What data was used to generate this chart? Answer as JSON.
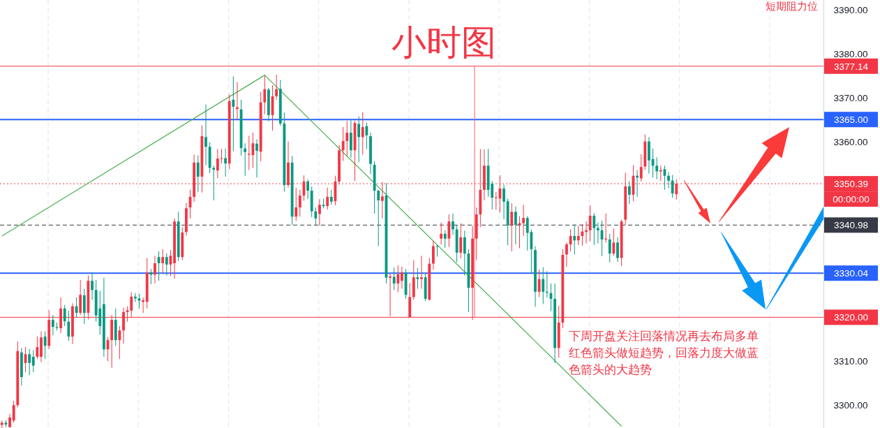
{
  "chart_data": {
    "type": "candlestick",
    "title": "小时图",
    "colors": [
      "#f23645",
      "#089981",
      "#f23645",
      "#f23645",
      "#f23645",
      "#089981",
      "#f23645",
      "#089981",
      "#089981",
      "#f23645",
      "#f23645",
      "#089981",
      "#f23645",
      "#089981",
      "#089981",
      "#f23645",
      "#089981",
      "#089981",
      "#f23645",
      "#089981",
      "#f23645",
      "#089981",
      "#f23645",
      "#089981",
      "#089981",
      "#089981",
      "#089981",
      "#f23645",
      "#f23645",
      "#089981",
      "#f23645",
      "#f23645",
      "#f23645",
      "#f23645",
      "#089981",
      "#089981",
      "#f23645",
      "#f23645",
      "#089981",
      "#f23645",
      "#089981",
      "#f23645",
      "#089981",
      "#f23645",
      "#f23645",
      "#089981",
      "#f23645",
      "#f23645",
      "#f23645",
      "#f23645",
      "#089981",
      "#f23645",
      "#089981",
      "#089981",
      "#089981",
      "#f23645",
      "#f23645",
      "#089981",
      "#f23645",
      "#089981",
      "#f23645",
      "#089981",
      "#089981",
      "#f23645",
      "#f23645",
      "#089981",
      "#f23645",
      "#f23645",
      "#089981",
      "#f23645",
      "#f23645",
      "#089981",
      "#089981",
      "#f23645",
      "#089981",
      "#f23645",
      "#f23645",
      "#f23645",
      "#089981",
      "#089981",
      "#089981",
      "#f23645",
      "#089981",
      "#f23645",
      "#089981",
      "#f23645",
      "#f23645",
      "#f23645",
      "#f23645",
      "#089981",
      "#f23645",
      "#089981",
      "#f23645",
      "#089981",
      "#089981",
      "#089981",
      "#089981",
      "#f23645",
      "#089981",
      "#f23645",
      "#089981",
      "#f23645",
      "#f23645",
      "#089981",
      "#f23645",
      "#f23645",
      "#089981",
      "#f23645",
      "#089981",
      "#f23645",
      "#f23645",
      "#089981",
      "#f23645",
      "#089981",
      "#f23645",
      "#089981",
      "#089981",
      "#f23645",
      "#089981",
      "#089981",
      "#f23645",
      "#f23645",
      "#f23645",
      "#f23645",
      "#089981",
      "#089981",
      "#f23645",
      "#f23645",
      "#089981",
      "#089981",
      "#f23645",
      "#089981",
      "#f23645",
      "#f23645",
      "#089981",
      "#089981",
      "#089981",
      "#f23645",
      "#089981",
      "#089981",
      "#089981",
      "#089981",
      "#f23645",
      "#f23645",
      "#f23645",
      "#f23645",
      "#089981",
      "#f23645",
      "#f23645",
      "#f23645",
      "#f23645",
      "#089981",
      "#089981",
      "#089981",
      "#f23645",
      "#089981",
      "#f23645",
      "#089981",
      "#f23645",
      "#f23645",
      "#089981",
      "#f23645",
      "#089981",
      "#f23645",
      "#f23645",
      "#089981",
      "#089981",
      "#089981",
      "#f23645",
      "#089981",
      "#089981",
      "#089981",
      "#f23645",
      null,
      null,
      null,
      null,
      null,
      null,
      null,
      null,
      null,
      null,
      null,
      null,
      null,
      null,
      null,
      null,
      null,
      null,
      null,
      null,
      null,
      null,
      null,
      null,
      null,
      null,
      null,
      null,
      null,
      null,
      null,
      null,
      null,
      null,
      null,
      null,
      null
    ],
    "categories": [
      null,
      null,
      null,
      null,
      null,
      null,
      null,
      null,
      null,
      null,
      null,
      null,
      null,
      null,
      null,
      null,
      null,
      null,
      null,
      null,
      null,
      null,
      null,
      null,
      null,
      null,
      null,
      null,
      null,
      null,
      null,
      null,
      null,
      null,
      null,
      null,
      null,
      null,
      null,
      null,
      null,
      null,
      null,
      null,
      null,
      null,
      null,
      null,
      null,
      null,
      null,
      null,
      null,
      null,
      null,
      null,
      null,
      null,
      null,
      null,
      null,
      null,
      null,
      null,
      null,
      null,
      null,
      null,
      null,
      null,
      null,
      null,
      null,
      null,
      null,
      null,
      null,
      null,
      null,
      null,
      null,
      null,
      null,
      null,
      null,
      null,
      null,
      null,
      null,
      null,
      null,
      null,
      null,
      null,
      null,
      null,
      null,
      null,
      null,
      null,
      null,
      null,
      null,
      null,
      null,
      null,
      null,
      null,
      null,
      null,
      null,
      null,
      null,
      null,
      null,
      null,
      null,
      null,
      null,
      null,
      null,
      null,
      null,
      null,
      null,
      null,
      null,
      null,
      null,
      null,
      null,
      null,
      null,
      null,
      null,
      null,
      null,
      null,
      null,
      null,
      null,
      null,
      null,
      null,
      null,
      null,
      null,
      null,
      null,
      null,
      null,
      null,
      null,
      null,
      null,
      null,
      null,
      null,
      null,
      null,
      null,
      null,
      null,
      null,
      null,
      null,
      null,
      null,
      null,
      null,
      null,
      null,
      null,
      null,
      null,
      null,
      null,
      null,
      null,
      null,
      null,
      null,
      null,
      null,
      null,
      null,
      null,
      null,
      null,
      null,
      null,
      null,
      null,
      null,
      null,
      null,
      null,
      null,
      null,
      null,
      null,
      null,
      null,
      null,
      null,
      null,
      null,
      null,
      null,
      null
    ],
    "ohlc": [
      [
        3295.5,
        3296.5,
        3294.8,
        3296
      ],
      [
        3296,
        3296.6,
        3295,
        3295.6
      ],
      [
        3295,
        3298,
        3294.9,
        3297.2
      ],
      [
        3296.5,
        3301,
        3296,
        3300
      ],
      [
        3300,
        3314.5,
        3299.5,
        3312.3
      ],
      [
        3312,
        3313,
        3304.5,
        3306.4
      ],
      [
        3309.6,
        3313.2,
        3307.5,
        3311.6
      ],
      [
        3311.6,
        3312.8,
        3306.8,
        3309.6
      ],
      [
        3311,
        3312.5,
        3307.5,
        3309
      ],
      [
        3311,
        3315.6,
        3310.5,
        3313.2
      ],
      [
        3311,
        3316.8,
        3309.8,
        3315.4
      ],
      [
        3315.6,
        3316.8,
        3310.5,
        3313.5
      ],
      [
        3313.5,
        3321.6,
        3312.8,
        3319.4
      ],
      [
        3319.4,
        3320.5,
        3315.9,
        3317.8
      ],
      [
        3317.8,
        3318.8,
        3317,
        3317.6
      ],
      [
        3317.5,
        3324.5,
        3316.4,
        3322
      ],
      [
        3322,
        3322.8,
        3318,
        3319.1
      ],
      [
        3319,
        3321.5,
        3314.6,
        3315.6
      ],
      [
        3315.6,
        3323.2,
        3313.9,
        3322.5
      ],
      [
        3322.5,
        3324.5,
        3320,
        3321
      ],
      [
        3321,
        3328.5,
        3320.5,
        3325.1
      ],
      [
        3325,
        3326.5,
        3318.5,
        3321
      ],
      [
        3321,
        3329.5,
        3319.5,
        3328.3
      ],
      [
        3328.3,
        3330.2,
        3324,
        3326.2
      ],
      [
        3326.2,
        3328.5,
        3319,
        3320.4
      ],
      [
        3322,
        3326,
        3316,
        3318
      ],
      [
        3323,
        3329,
        3311,
        3312.7
      ],
      [
        3312.7,
        3315.5,
        3310,
        3314.8
      ],
      [
        3314.8,
        3320.5,
        3308.5,
        3319.4
      ],
      [
        3319.4,
        3322,
        3313.5,
        3314.8
      ],
      [
        3314.8,
        3318,
        3310.5,
        3317
      ],
      [
        3317,
        3322.2,
        3314,
        3321.2
      ],
      [
        3321.2,
        3322.5,
        3319,
        3321.6
      ],
      [
        3321.5,
        3325.7,
        3320,
        3324.7
      ],
      [
        3324.7,
        3325.5,
        3323.5,
        3324.3
      ],
      [
        3324.3,
        3325.3,
        3322,
        3323.8
      ],
      [
        3323.5,
        3324.5,
        3321,
        3323.9
      ],
      [
        3323.5,
        3333.5,
        3322,
        3330.2
      ],
      [
        3330.2,
        3331,
        3327.5,
        3329.7
      ],
      [
        3329.7,
        3334,
        3327.7,
        3332.3
      ],
      [
        3333.7,
        3335,
        3328.3,
        3332.3
      ],
      [
        3332.3,
        3335.5,
        3330,
        3333.7
      ],
      [
        3333.7,
        3334.5,
        3329.5,
        3332
      ],
      [
        3332,
        3335.3,
        3329.4,
        3334
      ],
      [
        3332.3,
        3342.5,
        3328.8,
        3341.8
      ],
      [
        3341.8,
        3344,
        3332.8,
        3333.7
      ],
      [
        3333.7,
        3340.5,
        3333,
        3339.3
      ],
      [
        3339.4,
        3346,
        3338.6,
        3344.8
      ],
      [
        3345,
        3349,
        3342.5,
        3347.4
      ],
      [
        3347.4,
        3357,
        3346.3,
        3355.2
      ],
      [
        3355.2,
        3356.8,
        3348.5,
        3352
      ],
      [
        3352,
        3363.7,
        3348.4,
        3361.2
      ],
      [
        3361,
        3368.4,
        3354.6,
        3358.8
      ],
      [
        3358.8,
        3359.8,
        3352.8,
        3354
      ],
      [
        3354,
        3354.5,
        3346.6,
        3353.6
      ],
      [
        3353.4,
        3358.3,
        3351.6,
        3356.1
      ],
      [
        3356.1,
        3358.3,
        3355,
        3356.2
      ],
      [
        3356.2,
        3358.4,
        3352,
        3355
      ],
      [
        3355,
        3370.7,
        3353.7,
        3369.2
      ],
      [
        3369.5,
        3374.8,
        3357.8,
        3367.9
      ],
      [
        3367.4,
        3373.5,
        3365,
        3367.8
      ],
      [
        3367.3,
        3369.5,
        3356.8,
        3358.5
      ],
      [
        3358.4,
        3359.6,
        3352.2,
        3357.6
      ],
      [
        3357,
        3361.3,
        3353.5,
        3357.2
      ],
      [
        3356.9,
        3362,
        3354,
        3359.6
      ],
      [
        3359.5,
        3360.5,
        3351.8,
        3357.9
      ],
      [
        3357.7,
        3371.3,
        3355.5,
        3368.9
      ],
      [
        3368.9,
        3375.1,
        3366.2,
        3371.9
      ],
      [
        3371.8,
        3372.2,
        3364.6,
        3366
      ],
      [
        3366,
        3372.8,
        3362.5,
        3370.3
      ],
      [
        3370.3,
        3375.2,
        3369.5,
        3371.9
      ],
      [
        3372,
        3374,
        3363.6,
        3364.1
      ],
      [
        3364.1,
        3366.6,
        3348.6,
        3350.1
      ],
      [
        3350.1,
        3360,
        3349.5,
        3355.2
      ],
      [
        3355.2,
        3356.7,
        3341,
        3342.9
      ],
      [
        3342.9,
        3349.5,
        3341.9,
        3345
      ],
      [
        3345,
        3349,
        3342.9,
        3347.7
      ],
      [
        3347.7,
        3352.3,
        3346.5,
        3350.9
      ],
      [
        3350.9,
        3351.4,
        3346.9,
        3348.8
      ],
      [
        3348.8,
        3349.8,
        3342.8,
        3344.1
      ],
      [
        3344.1,
        3345,
        3340.9,
        3342.5
      ],
      [
        3343.5,
        3346.9,
        3340.9,
        3345.6
      ],
      [
        3345.6,
        3347,
        3344.8,
        3345.3
      ],
      [
        3345.3,
        3349.5,
        3344.5,
        3347.4
      ],
      [
        3347.4,
        3349,
        3345.6,
        3346.3
      ],
      [
        3346.4,
        3352.2,
        3345.5,
        3350.9
      ],
      [
        3350.9,
        3359.2,
        3350.2,
        3358
      ],
      [
        3358,
        3363.3,
        3355.6,
        3360.1
      ],
      [
        3360.1,
        3364.7,
        3356.8,
        3362
      ],
      [
        3362,
        3364.8,
        3356.3,
        3358
      ],
      [
        3358,
        3364.7,
        3351,
        3364.2
      ],
      [
        3364,
        3365.7,
        3355.3,
        3361
      ],
      [
        3361,
        3366.7,
        3357,
        3363.3
      ],
      [
        3363.5,
        3364.3,
        3358.3,
        3361.4
      ],
      [
        3361.2,
        3362,
        3352.6,
        3354.9
      ],
      [
        3354.7,
        3355.5,
        3343.6,
        3348.8
      ],
      [
        3348.8,
        3349,
        3336.2,
        3346.6
      ],
      [
        3346.5,
        3350.8,
        3342.5,
        3347.5
      ],
      [
        3347.7,
        3350.6,
        3327.7,
        3329
      ],
      [
        3329,
        3330,
        3320.2,
        3329.3
      ],
      [
        3329.2,
        3331.3,
        3326.2,
        3327.7
      ],
      [
        3327.7,
        3331.8,
        3325.7,
        3329.8
      ],
      [
        3328.3,
        3331.5,
        3326.5,
        3330.2
      ],
      [
        3330.2,
        3331,
        3324.2,
        3325.1
      ],
      [
        3320,
        3327.8,
        3320,
        3324.6
      ],
      [
        3324.6,
        3333,
        3324,
        3329.1
      ],
      [
        3329.1,
        3331.2,
        3326.5,
        3328.7
      ],
      [
        3328.7,
        3334,
        3326.5,
        3329.1
      ],
      [
        3329.1,
        3330,
        3323.7,
        3324.2
      ],
      [
        3324,
        3333.5,
        3323.8,
        3332.2
      ],
      [
        3332.2,
        3337.4,
        3330.8,
        3336.2
      ],
      [
        3336.2,
        3336.4,
        3333.8,
        3336.1
      ],
      [
        3337.9,
        3341.6,
        3336.5,
        3339
      ],
      [
        3339,
        3339.8,
        3335.8,
        3337.9
      ],
      [
        3337.9,
        3343.4,
        3336,
        3341.8
      ],
      [
        3341.8,
        3343.6,
        3338.8,
        3340
      ],
      [
        3340,
        3341,
        3332.5,
        3334.7
      ],
      [
        3334.7,
        3341.4,
        3333.4,
        3338.2
      ],
      [
        3338.2,
        3339.7,
        3329.5,
        3334.5
      ],
      [
        3334.5,
        3335.5,
        3321.2,
        3326.7
      ],
      [
        3326.7,
        3340.8,
        3319.4,
        3337.9
      ],
      [
        3337.9,
        3345,
        3333,
        3343.4
      ],
      [
        3343.4,
        3358.3,
        3340.5,
        3349
      ],
      [
        3349,
        3358.2,
        3346.6,
        3354.5
      ],
      [
        3354.5,
        3358.3,
        3347.4,
        3349
      ],
      [
        3350.4,
        3351,
        3344.5,
        3347.2
      ],
      [
        3347.2,
        3348.5,
        3344.5,
        3347.3
      ],
      [
        3347,
        3352.3,
        3343.8,
        3349.3
      ],
      [
        3349.3,
        3350.2,
        3342.3,
        3346.3
      ],
      [
        3346.4,
        3347,
        3336.4,
        3340.9
      ],
      [
        3340.9,
        3346,
        3335,
        3344
      ],
      [
        3344,
        3345.2,
        3336.6,
        3341
      ],
      [
        3341,
        3343,
        3335.7,
        3341.4
      ],
      [
        3341.4,
        3345.6,
        3338.5,
        3342.6
      ],
      [
        3342.6,
        3343,
        3335.2,
        3339.2
      ],
      [
        3339.4,
        3340,
        3330,
        3335.5
      ],
      [
        3335.3,
        3336.2,
        3322.4,
        3325.8
      ],
      [
        3325.8,
        3330.9,
        3324.6,
        3328.7
      ],
      [
        3328.7,
        3331.4,
        3323,
        3325.8
      ],
      [
        3325.8,
        3330.5,
        3324.5,
        3325.6
      ],
      [
        3325.5,
        3327.7,
        3321.4,
        3324.2
      ],
      [
        3324.2,
        3327.7,
        3309.6,
        3313
      ],
      [
        3313,
        3322.6,
        3310.8,
        3318.8
      ],
      [
        3318.8,
        3335.5,
        3317.5,
        3334.2
      ],
      [
        3334.3,
        3337,
        3331.5,
        3336.6
      ],
      [
        3336.6,
        3340,
        3335,
        3338.5
      ],
      [
        3338.5,
        3341.1,
        3334.3,
        3337.5
      ],
      [
        3337.5,
        3340.8,
        3336.4,
        3338.5
      ],
      [
        3338.5,
        3341.2,
        3336.3,
        3339.5
      ],
      [
        3339.4,
        3341.8,
        3336.8,
        3339.8
      ],
      [
        3339.8,
        3345.5,
        3337.3,
        3343.1
      ],
      [
        3343.1,
        3343.7,
        3336.4,
        3340.3
      ],
      [
        3340.3,
        3341.5,
        3336.8,
        3339.8
      ],
      [
        3339.8,
        3342,
        3333.9,
        3337.7
      ],
      [
        3337.7,
        3343.6,
        3337,
        3337.9
      ],
      [
        3337.7,
        3339,
        3332.5,
        3334.5
      ],
      [
        3334.5,
        3340.2,
        3334,
        3337
      ],
      [
        3337,
        3338.2,
        3332.6,
        3333.5
      ],
      [
        3333.5,
        3342.2,
        3331.6,
        3341.8
      ],
      [
        3342.2,
        3352.9,
        3341,
        3349.8
      ],
      [
        3349.8,
        3351,
        3345.8,
        3347.9
      ],
      [
        3347.9,
        3354.6,
        3346.4,
        3352.2
      ],
      [
        3352.2,
        3353.5,
        3347.4,
        3351.8
      ],
      [
        3351.6,
        3357.1,
        3350.9,
        3354.2
      ],
      [
        3354.3,
        3361.6,
        3353.6,
        3360
      ],
      [
        3360,
        3361,
        3352.7,
        3355.7
      ],
      [
        3356,
        3358.4,
        3351.8,
        3354.5
      ],
      [
        3354.5,
        3356.4,
        3351.4,
        3353.2
      ],
      [
        3353.2,
        3354.5,
        3351,
        3353.5
      ],
      [
        3353.7,
        3354.5,
        3349,
        3352.2
      ],
      [
        3352.2,
        3353,
        3349.4,
        3351.1
      ],
      [
        3351.1,
        3352.4,
        3347.2,
        3348.2
      ],
      [
        3348,
        3351.4,
        3346.8,
        3350.39
      ],
      null,
      null,
      null,
      null,
      null,
      null,
      null,
      null,
      null,
      null,
      null,
      null,
      null,
      null,
      null,
      null,
      null,
      null,
      null,
      null,
      null,
      null,
      null,
      null,
      null,
      null,
      null,
      null,
      null,
      null,
      null,
      null,
      null,
      null,
      null,
      null,
      null
    ],
    "series": [
      {
        "type": "line",
        "color": "#4caf50",
        "values": [
          3338.5,
          null,
          null,
          null,
          null,
          null,
          null,
          null,
          null,
          null,
          null,
          null,
          null,
          null,
          null,
          null,
          null,
          null,
          null,
          null,
          null,
          null,
          null,
          null,
          null,
          null,
          null,
          null,
          null,
          null,
          null,
          null,
          null,
          null,
          null,
          null,
          null,
          null,
          null,
          null,
          null,
          null,
          null,
          null,
          null,
          null,
          null,
          null,
          null,
          null,
          null,
          null,
          null,
          null,
          null,
          null,
          null,
          null,
          null,
          null,
          null,
          null,
          null,
          null,
          null,
          null,
          null,
          3375.1,
          null,
          null,
          null,
          null,
          null,
          null,
          null,
          null,
          null,
          null,
          null,
          null,
          null,
          null,
          null,
          null,
          null,
          null,
          null,
          null,
          null,
          null,
          null,
          null,
          null,
          null,
          null,
          null,
          null,
          null,
          null,
          null,
          null,
          null,
          null,
          null,
          null,
          null,
          null,
          null,
          null,
          null,
          null,
          null,
          null,
          null,
          null,
          null,
          null,
          null,
          null,
          null,
          null,
          null,
          null,
          null,
          null,
          null,
          null,
          null,
          null,
          null,
          null,
          null,
          null,
          null,
          null,
          null,
          null,
          null,
          null,
          null,
          null,
          null,
          null,
          null,
          null,
          null,
          null,
          null,
          null,
          null,
          null,
          null,
          null,
          null,
          null,
          null,
          null,
          null,
          3295.2,
          null,
          null,
          null,
          null,
          null,
          null,
          null,
          null,
          null,
          null,
          null,
          null,
          null,
          null,
          null,
          null,
          null,
          null,
          null,
          null,
          null,
          null,
          null,
          null,
          null,
          null,
          null,
          null,
          null,
          null,
          null,
          null,
          null,
          null,
          null,
          null,
          null,
          null,
          null,
          null,
          null,
          null,
          null,
          null,
          null,
          null,
          null,
          null,
          null,
          null,
          null
        ]
      }
    ],
    "ref_lines": [
      {
        "axis": "y",
        "value": 3377.14,
        "label": "3377.14",
        "color": "#f23645",
        "line_style": "solid"
      },
      {
        "axis": "y",
        "value": 3365.0,
        "label": "3365.00",
        "color": "#2962ff",
        "line_style": "solid"
      },
      {
        "axis": "y",
        "value": 3350.39,
        "label": "3350.39",
        "color": "#f23645",
        "line_style": "dotted"
      },
      {
        "axis": "y",
        "value": 3340.98,
        "label": "3340.98",
        "color": "#363a45",
        "line_style": "dashed"
      },
      {
        "axis": "y",
        "value": 3330.04,
        "label": "3330.04",
        "color": "#2962ff",
        "line_style": "solid"
      },
      {
        "axis": "y",
        "value": 3320.0,
        "label": "3320.00",
        "color": "#f23645",
        "line_style": "solid"
      }
    ],
    "annotations": [
      "下周开盘关注回落情况再去布局多单红色箭头做短趋势，回落力度大做蓝色箭头的大趋势",
      "00:00:00",
      "短期阻力位"
    ],
    "ylim": [
      3294.8,
      3392.2
    ],
    "yticks": [
      {
        "value": 3300,
        "label": "3300.00"
      },
      {
        "value": 3310,
        "label": "3310.00"
      },
      {
        "value": 3360,
        "label": "3360.00"
      },
      {
        "value": 3370,
        "label": "3370.00"
      },
      {
        "value": 3380,
        "label": "3380.00"
      },
      {
        "value": 3390,
        "label": "3390.00"
      }
    ],
    "tick_labels": "y",
    "grid": "x"
  }
}
